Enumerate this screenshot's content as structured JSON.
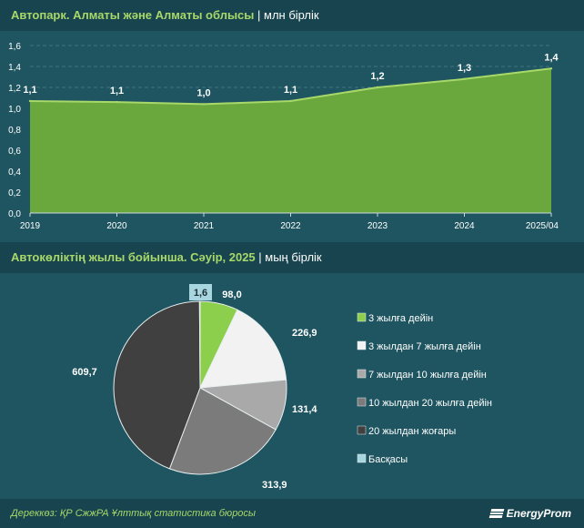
{
  "charts": {
    "area": {
      "title_main": "Автопарк. Алматы және Алматы облысы",
      "title_unit": "млн бірлік"
    },
    "pie": {
      "title_main": "Автокөліктің жылы бойынша. Сәуір, 2025",
      "title_unit": "мың бірлік"
    }
  },
  "chart_data": [
    {
      "type": "area",
      "x": [
        "2019",
        "2020",
        "2021",
        "2022",
        "2023",
        "2024",
        "2025/04"
      ],
      "values": [
        1.07,
        1.06,
        1.04,
        1.07,
        1.2,
        1.28,
        1.38
      ],
      "data_labels": [
        "1,1",
        "1,1",
        "1,0",
        "1,1",
        "1,2",
        "1,3",
        "1,4"
      ],
      "yticks": [
        "0,0",
        "0,2",
        "0,4",
        "0,6",
        "0,8",
        "1,0",
        "1,2",
        "1,4",
        "1,6"
      ],
      "ylim": [
        0,
        1.6
      ],
      "grid": true,
      "color": "#6aa83e",
      "line_color": "#a8d86a"
    },
    {
      "type": "pie",
      "legend_position": "right",
      "slices": [
        {
          "name": "3 жылға дейін",
          "value": 98.0,
          "label": "98,0",
          "color": "#8ccf4d"
        },
        {
          "name": "3 жылдан 7 жылға дейін",
          "value": 226.9,
          "label": "226,9",
          "color": "#f2f2f2"
        },
        {
          "name": "7 жылдан 10 жылға дейін",
          "value": 131.4,
          "label": "131,4",
          "color": "#a9a9a9"
        },
        {
          "name": "10 жылдан 20 жылға дейін",
          "value": 313.9,
          "label": "313,9",
          "color": "#7b7b7b"
        },
        {
          "name": "20 жылдан жоғары",
          "value": 609.7,
          "label": "609,7",
          "color": "#404040"
        },
        {
          "name": "Басқасы",
          "value": 1.6,
          "label": "1,6",
          "color": "#a8d6e0"
        }
      ]
    }
  ],
  "footer": {
    "source": "Дереккөз: ҚР СжжРА Ұлттық статистика бюросы",
    "brand": "EnergyProm"
  }
}
